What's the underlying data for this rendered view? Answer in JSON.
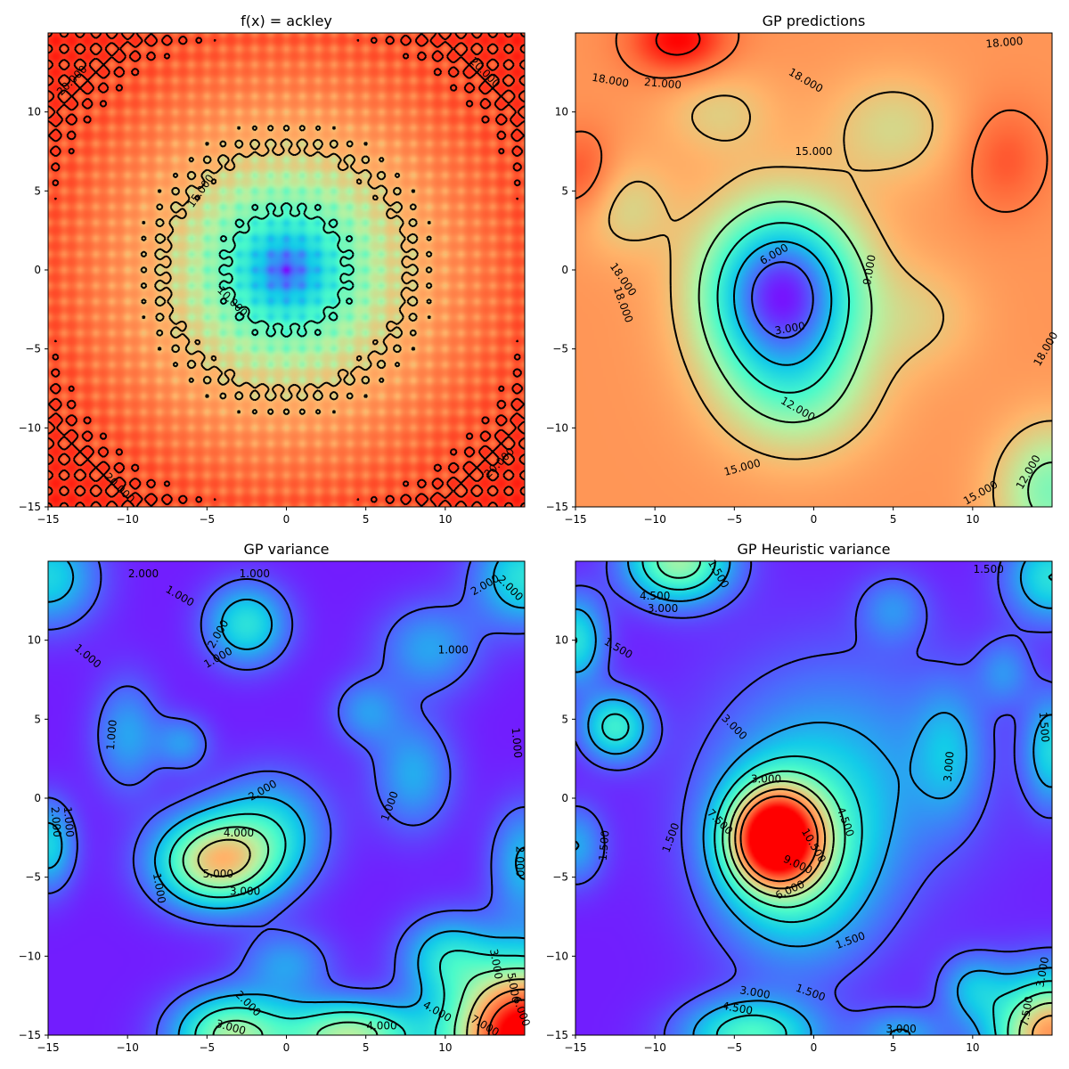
{
  "figure": {
    "colormap": "rainbow",
    "colormap_stops": [
      "#8000ff",
      "#4a6dfc",
      "#13cbe9",
      "#4bfbca",
      "#b5f2a2",
      "#ffb46a",
      "#ff6a3a",
      "#ff0000"
    ]
  },
  "chart_data": [
    {
      "type": "heatmap",
      "panel": "top-left",
      "title": "f(x) = ackley",
      "xlabel": "",
      "ylabel": "",
      "xlim": [
        -15,
        15
      ],
      "ylim": [
        -15,
        15
      ],
      "x_ticks": [
        -15,
        -10,
        -5,
        0,
        5,
        10
      ],
      "y_ticks": [
        -15,
        -10,
        -5,
        0,
        5,
        10
      ],
      "x_tick_labels": [
        "−15",
        "−10",
        "−5",
        "0",
        "5",
        "10"
      ],
      "y_tick_labels": [
        "−15",
        "−10",
        "−5",
        "0",
        "5",
        "10"
      ],
      "value_range": [
        0,
        22
      ],
      "features": {
        "kind": "ackley"
      },
      "contour_levels": [
        {
          "value": 10,
          "description": "wavy ring around origin, radius ~4"
        },
        {
          "value": 15,
          "description": "wavy ring, radius ~7.5"
        },
        {
          "value": 20,
          "description": "beaded chains in corners"
        }
      ],
      "contour_labels": [
        {
          "text": "15.000",
          "x": -5.4,
          "y": 5.0,
          "angle": -55
        },
        {
          "text": "10.000",
          "x": -3.4,
          "y": -2.0,
          "angle": 45
        },
        {
          "text": "20.000",
          "x": -13.5,
          "y": 12.0,
          "angle": -45
        },
        {
          "text": "20.000",
          "x": 12.5,
          "y": 12.5,
          "angle": 45
        },
        {
          "text": "20.000",
          "x": -10.5,
          "y": -13.8,
          "angle": 45
        },
        {
          "text": "20.000",
          "x": 13.4,
          "y": -12.2,
          "angle": -45
        }
      ]
    },
    {
      "type": "heatmap",
      "panel": "top-right",
      "title": "GP predictions",
      "xlabel": "",
      "ylabel": "",
      "xlim": [
        -15,
        15
      ],
      "ylim": [
        -15,
        15
      ],
      "x_ticks": [
        -15,
        -10,
        -5,
        0,
        5,
        10
      ],
      "y_ticks": [
        -15,
        -10,
        -5,
        0,
        5,
        10
      ],
      "x_tick_labels": [
        "−15",
        "−10",
        "−5",
        "0",
        "5",
        "10"
      ],
      "y_tick_labels": [
        "−15",
        "−10",
        "−5",
        "0",
        "5",
        "10"
      ],
      "value_range": [
        0,
        22
      ],
      "features": {
        "kind": "smooth",
        "base": 17,
        "bumps": [
          {
            "x": -2,
            "y": -1.5,
            "amp": -16,
            "sx": 3.4,
            "sy": 3.8
          },
          {
            "x": -1,
            "y": -8,
            "amp": -4,
            "sx": 3.5,
            "sy": 3.0
          },
          {
            "x": -12,
            "y": 4,
            "amp": -3,
            "sx": 2.2,
            "sy": 2.2
          },
          {
            "x": 5,
            "y": 9,
            "amp": -3,
            "sx": 3,
            "sy": 2.5
          },
          {
            "x": -8.5,
            "y": 14.5,
            "amp": 5,
            "sx": 2.2,
            "sy": 1.6
          },
          {
            "x": 15,
            "y": -14,
            "amp": -6,
            "sx": 2.5,
            "sy": 3
          },
          {
            "x": 12,
            "y": 7,
            "amp": 2.5,
            "sx": 2,
            "sy": 2.5
          },
          {
            "x": -14.5,
            "y": 6,
            "amp": 3,
            "sx": 1.5,
            "sy": 2
          },
          {
            "x": 7,
            "y": -3,
            "amp": -2,
            "sx": 2.5,
            "sy": 2.5
          },
          {
            "x": -6,
            "y": 10,
            "amp": -2.5,
            "sx": 2.5,
            "sy": 2
          }
        ]
      },
      "contour_levels": [
        3,
        6,
        9,
        12,
        15,
        18,
        21
      ],
      "contour_labels": [
        {
          "text": "18.000",
          "x": 12.0,
          "y": 14.4,
          "angle": -5
        },
        {
          "text": "18.000",
          "x": -12.8,
          "y": 12.0,
          "angle": 10
        },
        {
          "text": "21.000",
          "x": -9.5,
          "y": 11.8,
          "angle": 5
        },
        {
          "text": "18.000",
          "x": -0.5,
          "y": 12.0,
          "angle": 30
        },
        {
          "text": "15.000",
          "x": 0.0,
          "y": 7.5,
          "angle": 0
        },
        {
          "text": "6.000",
          "x": -2.5,
          "y": 1.0,
          "angle": -30
        },
        {
          "text": "9.000",
          "x": 3.5,
          "y": 0.0,
          "angle": -80
        },
        {
          "text": "3.000",
          "x": -1.5,
          "y": -3.7,
          "angle": -10
        },
        {
          "text": "18.000",
          "x": -12.0,
          "y": -0.6,
          "angle": 55
        },
        {
          "text": "18.000",
          "x": -12.0,
          "y": -2.2,
          "angle": 70
        },
        {
          "text": "12.000",
          "x": -1.0,
          "y": -8.8,
          "angle": 30
        },
        {
          "text": "15.000",
          "x": -4.5,
          "y": -12.5,
          "angle": -15
        },
        {
          "text": "15.000",
          "x": 10.5,
          "y": -14.1,
          "angle": -30
        },
        {
          "text": "12.000",
          "x": 13.5,
          "y": -12.8,
          "angle": -60
        },
        {
          "text": "18.000",
          "x": 14.6,
          "y": -5.0,
          "angle": -60
        }
      ]
    },
    {
      "type": "heatmap",
      "panel": "bottom-left",
      "title": "GP variance",
      "xlabel": "",
      "ylabel": "",
      "xlim": [
        -15,
        15
      ],
      "ylim": [
        -15,
        15
      ],
      "x_ticks": [
        -15,
        -10,
        -5,
        0,
        5,
        10
      ],
      "y_ticks": [
        -15,
        -10,
        -5,
        0,
        5,
        10
      ],
      "x_tick_labels": [
        "−15",
        "−10",
        "−5",
        "0",
        "5",
        "10"
      ],
      "y_tick_labels": [
        "−15",
        "−10",
        "−5",
        "0",
        "5",
        "10"
      ],
      "value_range": [
        0,
        8
      ],
      "features": {
        "kind": "smooth",
        "base": 0.3,
        "bumps": [
          {
            "x": -4.5,
            "y": -4,
            "amp": 4.8,
            "sx": 2.6,
            "sy": 2.0
          },
          {
            "x": -1,
            "y": -2,
            "amp": 2.0,
            "sx": 2.5,
            "sy": 2.5
          },
          {
            "x": 15,
            "y": -15,
            "amp": 8.5,
            "sx": 3.2,
            "sy": 3.2
          },
          {
            "x": -3.5,
            "y": -15,
            "amp": 4.0,
            "sx": 2.5,
            "sy": 1.8
          },
          {
            "x": 4,
            "y": -15,
            "amp": 4.2,
            "sx": 3.0,
            "sy": 1.5
          },
          {
            "x": -2.5,
            "y": 11,
            "amp": 2.5,
            "sx": 1.8,
            "sy": 1.8
          },
          {
            "x": -15,
            "y": 14,
            "amp": 2.2,
            "sx": 2.2,
            "sy": 2.2
          },
          {
            "x": 15,
            "y": 14,
            "amp": 2.5,
            "sx": 2.2,
            "sy": 2.2
          },
          {
            "x": -10,
            "y": 4,
            "amp": 1.5,
            "sx": 1.5,
            "sy": 2.5
          },
          {
            "x": 9,
            "y": 9.5,
            "amp": 1.5,
            "sx": 2.2,
            "sy": 2.0
          },
          {
            "x": 8,
            "y": 1.5,
            "amp": 1.6,
            "sx": 1.8,
            "sy": 2.5
          },
          {
            "x": -15,
            "y": -3,
            "amp": 2.2,
            "sx": 1.2,
            "sy": 2.0
          },
          {
            "x": 15,
            "y": -4,
            "amp": 1.8,
            "sx": 1.5,
            "sy": 2.5
          },
          {
            "x": 10,
            "y": -10,
            "amp": 2.0,
            "sx": 2.0,
            "sy": 1.8
          },
          {
            "x": 5,
            "y": 5.5,
            "amp": 1.3,
            "sx": 1.5,
            "sy": 1.5
          },
          {
            "x": -6.5,
            "y": 3.5,
            "amp": 1.3,
            "sx": 1.2,
            "sy": 1.2
          },
          {
            "x": 0,
            "y": -10.5,
            "amp": 1.4,
            "sx": 2.0,
            "sy": 1.5
          }
        ]
      },
      "contour_levels": [
        1,
        2,
        3,
        4,
        5,
        6,
        7
      ],
      "contour_labels": [
        {
          "text": "2.000",
          "x": -9.0,
          "y": 14.2,
          "angle": 0
        },
        {
          "text": "1.000",
          "x": -2.0,
          "y": 14.2,
          "angle": 0
        },
        {
          "text": "1.000",
          "x": -6.7,
          "y": 12.8,
          "angle": 30
        },
        {
          "text": "2.000",
          "x": -4.3,
          "y": 10.4,
          "angle": -60
        },
        {
          "text": "1.000",
          "x": -4.3,
          "y": 8.9,
          "angle": -30
        },
        {
          "text": "1.000",
          "x": -12.5,
          "y": 9.0,
          "angle": 40
        },
        {
          "text": "1.000",
          "x": 10.5,
          "y": 9.4,
          "angle": 0
        },
        {
          "text": "1.000",
          "x": -11.0,
          "y": 4.0,
          "angle": -85
        },
        {
          "text": "1.000",
          "x": 14.5,
          "y": 3.5,
          "angle": 85
        },
        {
          "text": "2.000",
          "x": 12.5,
          "y": 13.5,
          "angle": -30
        },
        {
          "text": "2.000",
          "x": 14.1,
          "y": 13.3,
          "angle": 45
        },
        {
          "text": "2.000",
          "x": -1.5,
          "y": 0.5,
          "angle": -30
        },
        {
          "text": "1.000",
          "x": 6.5,
          "y": -0.5,
          "angle": -70
        },
        {
          "text": "4.000",
          "x": -3.0,
          "y": -2.2,
          "angle": 0
        },
        {
          "text": "5.000",
          "x": -4.3,
          "y": -4.8,
          "angle": 0
        },
        {
          "text": "3.000",
          "x": -2.6,
          "y": -5.9,
          "angle": 0
        },
        {
          "text": "1.000",
          "x": -8.0,
          "y": -5.7,
          "angle": 80
        },
        {
          "text": "2.000",
          "x": -14.5,
          "y": -1.5,
          "angle": 85
        },
        {
          "text": "1.000",
          "x": -13.7,
          "y": -1.5,
          "angle": 85
        },
        {
          "text": "2.000",
          "x": 14.7,
          "y": -4.0,
          "angle": 90
        },
        {
          "text": "2.000",
          "x": -2.4,
          "y": -13.0,
          "angle": 45
        },
        {
          "text": "3.000",
          "x": -3.5,
          "y": -14.5,
          "angle": 15
        },
        {
          "text": "4.000",
          "x": 6.0,
          "y": -14.4,
          "angle": 0
        },
        {
          "text": "4.000",
          "x": 9.5,
          "y": -13.5,
          "angle": 30
        },
        {
          "text": "3.000",
          "x": 13.2,
          "y": -10.5,
          "angle": 80
        },
        {
          "text": "5.000",
          "x": 14.3,
          "y": -12.0,
          "angle": 80
        },
        {
          "text": "6.000",
          "x": 14.8,
          "y": -13.5,
          "angle": 70
        },
        {
          "text": "7.000",
          "x": 12.5,
          "y": -14.4,
          "angle": 30
        }
      ]
    },
    {
      "type": "heatmap",
      "panel": "bottom-right",
      "title": "GP Heuristic variance",
      "xlabel": "",
      "ylabel": "",
      "xlim": [
        -15,
        15
      ],
      "ylim": [
        -15,
        15
      ],
      "x_ticks": [
        -15,
        -10,
        -5,
        0,
        5,
        10
      ],
      "y_ticks": [
        -15,
        -10,
        -5,
        0,
        5,
        10
      ],
      "x_tick_labels": [
        "−15",
        "−10",
        "−5",
        "0",
        "5",
        "10"
      ],
      "y_tick_labels": [
        "−15",
        "−10",
        "−5",
        "0",
        "5",
        "10"
      ],
      "value_range": [
        0,
        13
      ],
      "features": {
        "kind": "smooth",
        "base": 0.5,
        "bumps": [
          {
            "x": -2.5,
            "y": -2.5,
            "amp": 11.5,
            "sx": 2.0,
            "sy": 2.2
          },
          {
            "x": -1,
            "y": -4,
            "amp": 4.5,
            "sx": 3.5,
            "sy": 4.5
          },
          {
            "x": 2,
            "y": 2,
            "amp": 2.2,
            "sx": 6.0,
            "sy": 5.5
          },
          {
            "x": 15,
            "y": -15,
            "amp": 9.5,
            "sx": 2.6,
            "sy": 2.6
          },
          {
            "x": -12.5,
            "y": 4.5,
            "amp": 4.5,
            "sx": 1.5,
            "sy": 1.5
          },
          {
            "x": -8.5,
            "y": 15,
            "amp": 6.5,
            "sx": 2.3,
            "sy": 1.8
          },
          {
            "x": -15,
            "y": 10,
            "amp": 4.0,
            "sx": 1.3,
            "sy": 2.0
          },
          {
            "x": 15,
            "y": 3,
            "amp": 3.5,
            "sx": 1.2,
            "sy": 2.5
          },
          {
            "x": -4,
            "y": -15,
            "amp": 5.0,
            "sx": 3.0,
            "sy": 1.6
          },
          {
            "x": 10,
            "y": -12,
            "amp": 2.5,
            "sx": 1.5,
            "sy": 1.5
          },
          {
            "x": 15,
            "y": 14,
            "amp": 4.0,
            "sx": 2.0,
            "sy": 2.0
          },
          {
            "x": 8.5,
            "y": 3,
            "amp": 2.0,
            "sx": 1.5,
            "sy": 3.0
          },
          {
            "x": 5,
            "y": 12,
            "amp": 1.8,
            "sx": 1.5,
            "sy": 1.5
          },
          {
            "x": 12,
            "y": 8,
            "amp": 1.8,
            "sx": 1.2,
            "sy": 1.5
          },
          {
            "x": -15,
            "y": -3,
            "amp": 2.5,
            "sx": 1.3,
            "sy": 1.8
          },
          {
            "x": 5.5,
            "y": -15,
            "amp": 2.5,
            "sx": 2.0,
            "sy": 1.2
          }
        ]
      },
      "contour_levels": [
        1.5,
        3.0,
        4.5,
        6.0,
        7.5,
        9.0,
        10.5
      ],
      "contour_labels": [
        {
          "text": "1.500",
          "x": -6.0,
          "y": 14.2,
          "angle": 60
        },
        {
          "text": "4.500",
          "x": -10.0,
          "y": 12.8,
          "angle": 0
        },
        {
          "text": "3.000",
          "x": -9.5,
          "y": 12.0,
          "angle": 0
        },
        {
          "text": "1.500",
          "x": 11.0,
          "y": 14.5,
          "angle": 0
        },
        {
          "text": "1.500",
          "x": -12.3,
          "y": 9.5,
          "angle": 30
        },
        {
          "text": "1.500",
          "x": 14.5,
          "y": 4.5,
          "angle": 85
        },
        {
          "text": "3.000",
          "x": -5.0,
          "y": 4.5,
          "angle": 45
        },
        {
          "text": "3.000",
          "x": 8.5,
          "y": 2.0,
          "angle": -85
        },
        {
          "text": "3.000",
          "x": -3.0,
          "y": 1.2,
          "angle": 0
        },
        {
          "text": "7.500",
          "x": -5.9,
          "y": -1.5,
          "angle": 45
        },
        {
          "text": "1.500",
          "x": -9.0,
          "y": -2.5,
          "angle": -70
        },
        {
          "text": "1.500",
          "x": -13.2,
          "y": -3.0,
          "angle": -85
        },
        {
          "text": "4.500",
          "x": 2.0,
          "y": -1.5,
          "angle": 70
        },
        {
          "text": "10.500",
          "x": 0.0,
          "y": -3.0,
          "angle": 60
        },
        {
          "text": "9.000",
          "x": -1.0,
          "y": -4.2,
          "angle": 25
        },
        {
          "text": "6.000",
          "x": -1.5,
          "y": -5.8,
          "angle": -25
        },
        {
          "text": "1.500",
          "x": 2.3,
          "y": -9.0,
          "angle": -20
        },
        {
          "text": "3.000",
          "x": -3.7,
          "y": -12.3,
          "angle": 10
        },
        {
          "text": "4.500",
          "x": -4.8,
          "y": -13.3,
          "angle": 10
        },
        {
          "text": "1.500",
          "x": -0.2,
          "y": -12.3,
          "angle": 20
        },
        {
          "text": "3.000",
          "x": 5.5,
          "y": -14.6,
          "angle": 0
        },
        {
          "text": "3.000",
          "x": 14.4,
          "y": -11.0,
          "angle": -80
        },
        {
          "text": "7.500",
          "x": 13.4,
          "y": -13.5,
          "angle": -80
        }
      ]
    }
  ]
}
